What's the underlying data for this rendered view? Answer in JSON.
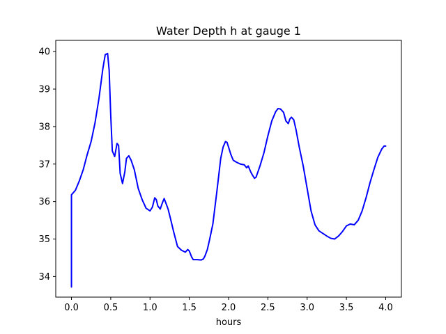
{
  "chart_data": {
    "type": "line",
    "title": "Water Depth h at gauge 1",
    "xlabel": "hours",
    "ylabel": "",
    "xlim": [
      -0.2,
      4.2
    ],
    "ylim": [
      33.45,
      40.3
    ],
    "xticks": [
      0.0,
      0.5,
      1.0,
      1.5,
      2.0,
      2.5,
      3.0,
      3.5,
      4.0
    ],
    "xtick_labels": [
      "0.0",
      "0.5",
      "1.0",
      "1.5",
      "2.0",
      "2.5",
      "3.0",
      "3.5",
      "4.0"
    ],
    "yticks": [
      34,
      35,
      36,
      37,
      38,
      39,
      40
    ],
    "ytick_labels": [
      "34",
      "35",
      "36",
      "37",
      "38",
      "39",
      "40"
    ],
    "grid": false,
    "series": [
      {
        "color": "#0000ff",
        "x": [
          0.0,
          0.0,
          0.0,
          0.05,
          0.1,
          0.15,
          0.2,
          0.25,
          0.3,
          0.35,
          0.4,
          0.43,
          0.46,
          0.48,
          0.5,
          0.52,
          0.55,
          0.58,
          0.6,
          0.62,
          0.65,
          0.68,
          0.7,
          0.73,
          0.76,
          0.8,
          0.85,
          0.9,
          0.95,
          1.0,
          1.03,
          1.06,
          1.08,
          1.1,
          1.13,
          1.16,
          1.18,
          1.2,
          1.23,
          1.26,
          1.3,
          1.35,
          1.4,
          1.45,
          1.48,
          1.5,
          1.53,
          1.55,
          1.6,
          1.65,
          1.68,
          1.7,
          1.73,
          1.76,
          1.8,
          1.85,
          1.9,
          1.93,
          1.96,
          1.98,
          2.0,
          2.03,
          2.06,
          2.1,
          2.15,
          2.2,
          2.23,
          2.25,
          2.28,
          2.3,
          2.33,
          2.35,
          2.4,
          2.45,
          2.5,
          2.55,
          2.6,
          2.63,
          2.66,
          2.7,
          2.73,
          2.76,
          2.78,
          2.8,
          2.83,
          2.86,
          2.9,
          2.95,
          3.0,
          3.05,
          3.1,
          3.15,
          3.2,
          3.25,
          3.3,
          3.35,
          3.4,
          3.45,
          3.5,
          3.55,
          3.6,
          3.65,
          3.7,
          3.75,
          3.8,
          3.85,
          3.9,
          3.95,
          3.98,
          4.0
        ],
        "y": [
          33.72,
          36.1,
          36.18,
          36.3,
          36.55,
          36.85,
          37.25,
          37.6,
          38.1,
          38.75,
          39.55,
          39.92,
          39.95,
          39.5,
          38.3,
          37.35,
          37.2,
          37.55,
          37.5,
          36.75,
          36.48,
          36.8,
          37.15,
          37.22,
          37.1,
          36.85,
          36.35,
          36.05,
          35.82,
          35.75,
          35.85,
          36.1,
          36.05,
          35.88,
          35.8,
          35.98,
          36.08,
          35.97,
          35.8,
          35.55,
          35.2,
          34.8,
          34.7,
          34.65,
          34.72,
          34.68,
          34.52,
          34.45,
          34.45,
          34.44,
          34.47,
          34.55,
          34.72,
          35.0,
          35.4,
          36.25,
          37.15,
          37.45,
          37.6,
          37.58,
          37.45,
          37.25,
          37.1,
          37.05,
          37.0,
          36.98,
          36.9,
          36.95,
          36.8,
          36.72,
          36.62,
          36.65,
          36.95,
          37.3,
          37.75,
          38.15,
          38.4,
          38.48,
          38.47,
          38.38,
          38.15,
          38.08,
          38.2,
          38.25,
          38.18,
          37.9,
          37.45,
          36.95,
          36.35,
          35.75,
          35.38,
          35.22,
          35.15,
          35.08,
          35.02,
          35.0,
          35.08,
          35.2,
          35.35,
          35.4,
          35.38,
          35.5,
          35.75,
          36.1,
          36.5,
          36.85,
          37.18,
          37.4,
          37.48,
          37.48
        ]
      }
    ]
  }
}
